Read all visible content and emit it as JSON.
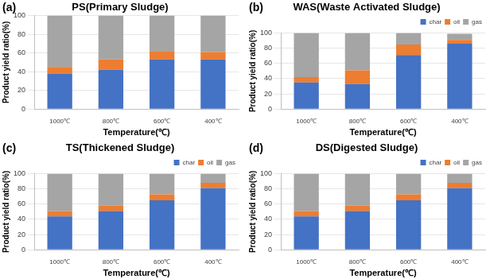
{
  "chart_data": [
    {
      "type": "bar",
      "stacked": true,
      "title": "PS(Primary Sludge)",
      "annotation": "(a)",
      "x_label": "Temperature(℃)",
      "y_label": "Product yield ratio(%)",
      "categories": [
        "1000℃",
        "800℃",
        "600℃",
        "400℃"
      ],
      "series": [
        {
          "name": "char",
          "color": "#4472c4",
          "values": [
            38,
            42,
            53,
            53
          ]
        },
        {
          "name": "oil",
          "color": "#ed7d31",
          "values": [
            7,
            11,
            9,
            8
          ]
        },
        {
          "name": "gas",
          "color": "#a5a5a5",
          "values": [
            55,
            47,
            38,
            39
          ]
        }
      ],
      "ylim": [
        0,
        100
      ],
      "yticks": [
        0,
        20,
        40,
        60,
        80,
        100
      ],
      "grid": true
    },
    {
      "type": "bar",
      "stacked": true,
      "title": "WAS(Waste Activated Sludge)",
      "annotation": "(b)",
      "x_label": "Temperature(℃)",
      "y_label": "Product yield ratio(%)",
      "categories": [
        "1000℃",
        "800℃",
        "600℃",
        "400℃"
      ],
      "series": [
        {
          "name": "char",
          "color": "#4472c4",
          "values": [
            35,
            33,
            71,
            86
          ]
        },
        {
          "name": "oil",
          "color": "#ed7d31",
          "values": [
            7,
            18,
            14,
            5
          ]
        },
        {
          "name": "gas",
          "color": "#a5a5a5",
          "values": [
            58,
            49,
            15,
            8
          ]
        }
      ],
      "ylim": [
        0,
        100
      ],
      "yticks": [
        0,
        20,
        40,
        60,
        80,
        100
      ],
      "grid": true,
      "legend": "top-right"
    },
    {
      "type": "bar",
      "stacked": true,
      "title": "TS(Thickened Sludge)",
      "annotation": "(c)",
      "x_label": "Temperature(℃)",
      "y_label": "Product yield ratio(%)",
      "categories": [
        "1000℃",
        "800℃",
        "600℃",
        "400℃"
      ],
      "series": [
        {
          "name": "char",
          "color": "#4472c4",
          "values": [
            44,
            51,
            65,
            81
          ]
        },
        {
          "name": "oil",
          "color": "#ed7d31",
          "values": [
            7,
            7,
            8,
            7
          ]
        },
        {
          "name": "gas",
          "color": "#a5a5a5",
          "values": [
            49,
            42,
            27,
            12
          ]
        }
      ],
      "ylim": [
        0,
        100
      ],
      "yticks": [
        0,
        20,
        40,
        60,
        80,
        100
      ],
      "grid": true,
      "legend": "top-right"
    },
    {
      "type": "bar",
      "stacked": true,
      "title": "DS(Digested Sludge)",
      "annotation": "(d)",
      "x_label": "Temperature(℃)",
      "y_label": "Product yield ratio(%)",
      "categories": [
        "1000℃",
        "800℃",
        "600℃",
        "400℃"
      ],
      "series": [
        {
          "name": "char",
          "color": "#4472c4",
          "values": [
            44,
            51,
            65,
            81
          ]
        },
        {
          "name": "oil",
          "color": "#ed7d31",
          "values": [
            7,
            7,
            8,
            7
          ]
        },
        {
          "name": "gas",
          "color": "#a5a5a5",
          "values": [
            49,
            42,
            27,
            12
          ]
        }
      ],
      "ylim": [
        0,
        100
      ],
      "yticks": [
        0,
        20,
        40,
        60,
        80,
        100
      ],
      "grid": true,
      "legend": "top-right"
    }
  ]
}
